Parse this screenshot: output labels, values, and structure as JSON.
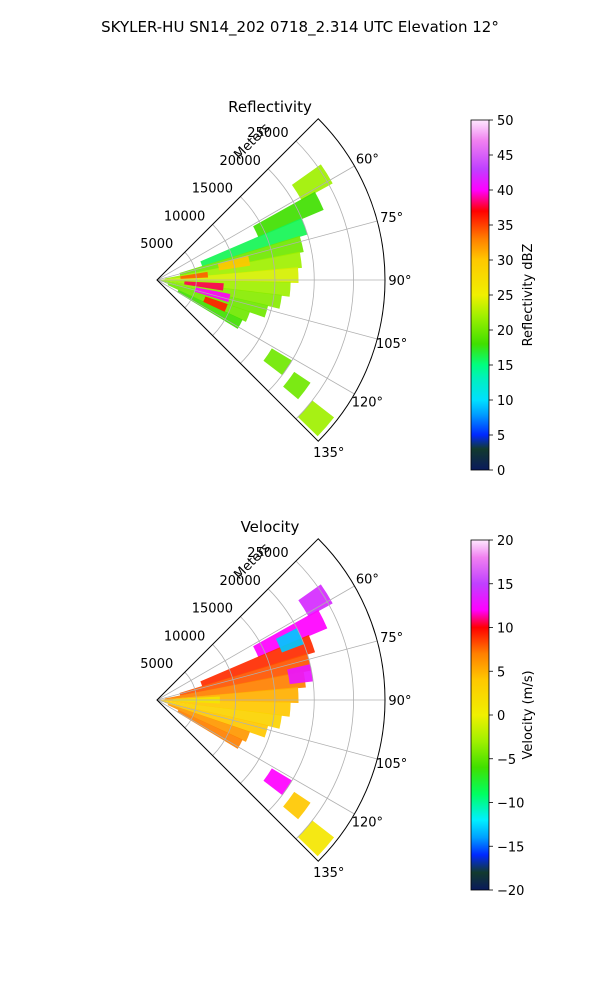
{
  "figure": {
    "title": "SKYLER-HU  SN14_202  0718_2.314 UTC Elevation 12°"
  },
  "chart_data": [
    {
      "type": "heatmap",
      "subtype": "polar-sector",
      "title": "Reflectivity",
      "radial_label": "Meters",
      "radial_ticks": [
        5000,
        10000,
        15000,
        20000,
        25000
      ],
      "radial_tick_labels": [
        "5000",
        "10000",
        "15000",
        "20000",
        "25000"
      ],
      "radial_max": 29000,
      "angle_range_deg": [
        45,
        135
      ],
      "angle_ticks": [
        60,
        75,
        90,
        105,
        120,
        135
      ],
      "angle_tick_labels": [
        "60°",
        "75°",
        "90°",
        "105°",
        "120°",
        "135°"
      ],
      "grid": true,
      "colorbar": {
        "label": "Reflectivity dBZ",
        "range": [
          0,
          50
        ],
        "ticks": [
          0,
          5,
          10,
          15,
          20,
          25,
          30,
          35,
          40,
          45,
          50
        ],
        "tick_labels": [
          "0",
          "5",
          "10",
          "15",
          "20",
          "25",
          "30",
          "35",
          "40",
          "45",
          "50"
        ],
        "stops": [
          [
            0,
            "#0a1a5c"
          ],
          [
            3,
            "#123a2e"
          ],
          [
            5,
            "#0028ff"
          ],
          [
            8,
            "#00a0ff"
          ],
          [
            10,
            "#00e0ff"
          ],
          [
            13,
            "#00f0c0"
          ],
          [
            15,
            "#00ff80"
          ],
          [
            18,
            "#40e000"
          ],
          [
            22,
            "#a0f000"
          ],
          [
            25,
            "#f0f000"
          ],
          [
            30,
            "#ffc800"
          ],
          [
            33,
            "#ff8000"
          ],
          [
            37,
            "#ff0000"
          ],
          [
            40,
            "#ff00ff"
          ],
          [
            43,
            "#c040ff"
          ],
          [
            47,
            "#f080f0"
          ],
          [
            50,
            "#ffe8ff"
          ]
        ]
      },
      "cells": [
        {
          "az": 58,
          "r": [
            21000,
            25500
          ],
          "value": 22
        },
        {
          "az": 64,
          "r": [
            14000,
            23000
          ],
          "value": 18
        },
        {
          "az": 70,
          "r": [
            6000,
            20000
          ],
          "value": 16
        },
        {
          "az": 76,
          "r": [
            3000,
            19000
          ],
          "value": 20
        },
        {
          "az": 82,
          "r": [
            1000,
            18500
          ],
          "value": 22
        },
        {
          "az": 88,
          "r": [
            500,
            18000
          ],
          "value": 24
        },
        {
          "az": 94,
          "r": [
            500,
            17000
          ],
          "value": 22
        },
        {
          "az": 100,
          "r": [
            500,
            16000
          ],
          "value": 21
        },
        {
          "az": 106,
          "r": [
            1000,
            14500
          ],
          "value": 20
        },
        {
          "az": 112,
          "r": [
            1500,
            12500
          ],
          "value": 20
        },
        {
          "az": 118,
          "r": [
            3000,
            12000
          ],
          "value": 18
        },
        {
          "az": 124,
          "r": [
            17000,
            20000
          ],
          "value": 20
        },
        {
          "az": 127,
          "r": [
            21000,
            23500
          ],
          "value": 20
        },
        {
          "az": 131,
          "r": [
            25000,
            28500
          ],
          "value": 22
        },
        {
          "az": 84,
          "r": [
            3000,
            6500
          ],
          "value": 34
        },
        {
          "az": 96,
          "r": [
            3500,
            8500
          ],
          "value": 38
        },
        {
          "az": 104,
          "r": [
            5000,
            9500
          ],
          "value": 40
        },
        {
          "az": 112,
          "r": [
            6500,
            9500
          ],
          "value": 36
        },
        {
          "az": 78,
          "r": [
            8000,
            12000
          ],
          "value": 30
        }
      ]
    },
    {
      "type": "heatmap",
      "subtype": "polar-sector",
      "title": "Velocity",
      "radial_label": "Meters",
      "radial_ticks": [
        5000,
        10000,
        15000,
        20000,
        25000
      ],
      "radial_tick_labels": [
        "5000",
        "10000",
        "15000",
        "20000",
        "25000"
      ],
      "radial_max": 29000,
      "angle_range_deg": [
        45,
        135
      ],
      "angle_ticks": [
        60,
        75,
        90,
        105,
        120,
        135
      ],
      "angle_tick_labels": [
        "60°",
        "75°",
        "90°",
        "105°",
        "120°",
        "135°"
      ],
      "grid": true,
      "colorbar": {
        "label": "Velocity (m/s)",
        "range": [
          -20,
          20
        ],
        "ticks": [
          -20,
          -15,
          -10,
          -5,
          0,
          5,
          10,
          15,
          20
        ],
        "tick_labels": [
          "−20",
          "−15",
          "−10",
          "−5",
          "0",
          "5",
          "10",
          "15",
          "20"
        ],
        "stops": [
          [
            -20,
            "#0a1a5c"
          ],
          [
            -18,
            "#123a2e"
          ],
          [
            -16,
            "#0028ff"
          ],
          [
            -14,
            "#00a0ff"
          ],
          [
            -12,
            "#00f0ff"
          ],
          [
            -9,
            "#00ff60"
          ],
          [
            -6,
            "#40e000"
          ],
          [
            -3,
            "#a0f000"
          ],
          [
            0,
            "#f0f000"
          ],
          [
            4,
            "#ffc800"
          ],
          [
            7,
            "#ff8000"
          ],
          [
            10,
            "#ff0000"
          ],
          [
            12,
            "#ff00ff"
          ],
          [
            15,
            "#c040ff"
          ],
          [
            18,
            "#f080f0"
          ],
          [
            20,
            "#ffe8ff"
          ]
        ]
      },
      "cells": [
        {
          "az": 58,
          "r": [
            22000,
            25500
          ],
          "value": 14
        },
        {
          "az": 64,
          "r": [
            14000,
            23500
          ],
          "value": 12
        },
        {
          "az": 70,
          "r": [
            6000,
            21000
          ],
          "value": 9
        },
        {
          "az": 76,
          "r": [
            3000,
            20000
          ],
          "value": 8
        },
        {
          "az": 82,
          "r": [
            1000,
            19000
          ],
          "value": 7
        },
        {
          "az": 88,
          "r": [
            500,
            18000
          ],
          "value": 5
        },
        {
          "az": 94,
          "r": [
            500,
            17000
          ],
          "value": 4
        },
        {
          "az": 100,
          "r": [
            500,
            16000
          ],
          "value": 3
        },
        {
          "az": 106,
          "r": [
            1000,
            14500
          ],
          "value": 4
        },
        {
          "az": 112,
          "r": [
            1500,
            12500
          ],
          "value": 6
        },
        {
          "az": 118,
          "r": [
            3000,
            12000
          ],
          "value": 7
        },
        {
          "az": 124,
          "r": [
            17000,
            20000
          ],
          "value": 12
        },
        {
          "az": 127,
          "r": [
            21000,
            23500
          ],
          "value": 4
        },
        {
          "az": 131,
          "r": [
            25000,
            28500
          ],
          "value": 1
        },
        {
          "az": 66,
          "r": [
            17000,
            20000
          ],
          "value": -13
        },
        {
          "az": 80,
          "r": [
            17000,
            20000
          ],
          "value": 13
        },
        {
          "az": 90,
          "r": [
            2000,
            8000
          ],
          "value": 1
        }
      ]
    }
  ]
}
